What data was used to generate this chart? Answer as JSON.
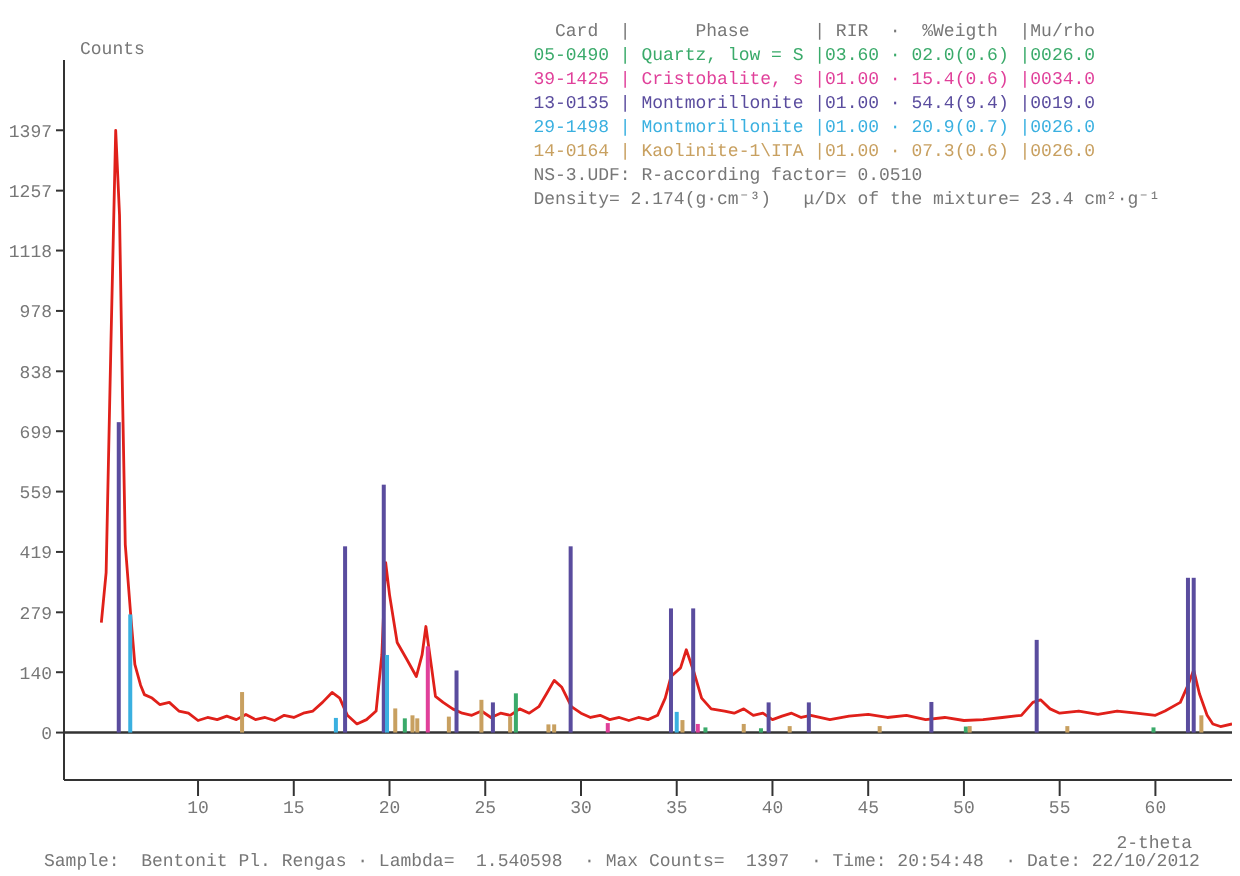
{
  "chart_data": {
    "type": "line",
    "ylabel": "Counts",
    "xlabel": "2-theta",
    "legend_title": "  Card  |      Phase      | RIR  ·  %Weigth  |Mu/rho",
    "legend": "top right",
    "annotations": [
      "NS-3.UDF: R-according factor= 0.0510",
      "Density= 2.174(g·cm⁻³)   μ/Dx of the mixture= 23.4 cm²·g⁻¹",
      "Sample:  Bentonit Pl. Rengas · Lambda=  1.540598  · Max Counts=  1397  · Time: 20:54:48  · Date: 22/10/2012"
    ],
    "xlim": [
      3,
      64
    ],
    "xticks": [
      10,
      15,
      20,
      25,
      30,
      35,
      40,
      45,
      50,
      55,
      60
    ],
    "ylim": [
      -110,
      1560
    ],
    "yticks": [
      0,
      140,
      279,
      419,
      559,
      699,
      838,
      978,
      1118,
      1257,
      1397
    ],
    "ref_lines": [
      {
        "axis": "y",
        "value": 0,
        "color": "#333333"
      }
    ],
    "series": [
      {
        "color": "#e0201a",
        "x": [
          4.95,
          5.2,
          5.45,
          5.7,
          5.9,
          6.06,
          6.2,
          6.5,
          6.7,
          7.0,
          7.2,
          7.6,
          8.0,
          8.5,
          9.0,
          9.5,
          10.0,
          10.5,
          11.0,
          11.5,
          12.0,
          12.5,
          13.0,
          13.5,
          14.0,
          14.5,
          15.0,
          15.5,
          16.0,
          16.5,
          17.0,
          17.4,
          17.8,
          18.3,
          18.8,
          19.3,
          19.6,
          19.8,
          20.0,
          20.4,
          20.9,
          21.4,
          21.7,
          21.9,
          22.2,
          22.4,
          22.8,
          23.3,
          23.8,
          24.3,
          24.8,
          25.3,
          25.8,
          26.3,
          26.8,
          27.3,
          27.8,
          28.2,
          28.6,
          29.0,
          29.5,
          30.0,
          30.5,
          31.0,
          31.5,
          32.0,
          32.5,
          33.0,
          33.5,
          34.0,
          34.4,
          34.7,
          35.2,
          35.5,
          35.9,
          36.3,
          36.8,
          37.5,
          38.0,
          38.5,
          39.0,
          39.5,
          40.0,
          40.5,
          41.0,
          41.5,
          42.0,
          43.0,
          44.0,
          45.0,
          46.0,
          47.0,
          48.0,
          49.0,
          50.0,
          51.0,
          52.0,
          53.0,
          53.6,
          54.0,
          54.5,
          55.0,
          56.0,
          57.0,
          58.0,
          59.0,
          60.0,
          60.5,
          61.3,
          61.7,
          62.0,
          62.3,
          62.7,
          63.0,
          63.4,
          64.0
        ],
        "values": [
          255,
          371,
          900,
          1397,
          1200,
          775,
          436,
          264,
          158,
          110,
          88,
          80,
          65,
          70,
          50,
          45,
          28,
          35,
          30,
          38,
          30,
          42,
          30,
          35,
          28,
          40,
          35,
          45,
          50,
          70,
          93,
          80,
          40,
          20,
          30,
          50,
          180,
          394,
          320,
          209,
          170,
          130,
          180,
          246,
          150,
          84,
          70,
          55,
          45,
          40,
          50,
          35,
          45,
          40,
          55,
          45,
          60,
          90,
          121,
          105,
          60,
          45,
          35,
          40,
          30,
          35,
          28,
          35,
          30,
          40,
          80,
          130,
          150,
          192,
          140,
          80,
          55,
          50,
          45,
          55,
          40,
          45,
          30,
          38,
          45,
          35,
          40,
          30,
          38,
          42,
          35,
          40,
          30,
          35,
          28,
          30,
          35,
          40,
          70,
          76,
          55,
          45,
          50,
          42,
          50,
          45,
          40,
          50,
          70,
          110,
          145,
          90,
          40,
          20,
          14,
          20
        ]
      },
      {
        "type": "bar",
        "name": "05-0490 | Quartz, low = S |03.60 · 02.0(0.6) |0026.0",
        "color": "#3aaa6a",
        "x": [
          20.8,
          26.6,
          36.5,
          39.4,
          50.1,
          59.9
        ],
        "values": [
          33,
          91,
          12,
          10,
          14,
          12
        ]
      },
      {
        "type": "bar",
        "name": "39-1425 | Cristobalite, s |01.00 · 15.4(0.6) |0034.0",
        "color": "#e0409a",
        "x": [
          22.0,
          31.4,
          36.1
        ],
        "values": [
          200,
          22,
          20
        ]
      },
      {
        "type": "bar",
        "name": "13-0135 | Montmorillonite |01.00 · 54.4(9.4) |0019.0",
        "color": "#5a4c9e",
        "x": [
          5.86,
          17.68,
          19.7,
          23.5,
          25.4,
          29.46,
          34.7,
          35.86,
          39.8,
          41.9,
          48.3,
          53.8,
          61.7,
          62.0
        ],
        "values": [
          720,
          432,
          575,
          144,
          70,
          432,
          288,
          288,
          70,
          70,
          71,
          215,
          359,
          359
        ]
      },
      {
        "type": "bar",
        "name": "29-1498 | Montmorillonite |01.00 · 20.9(0.7) |0026.0",
        "color": "#3ab0e0",
        "x": [
          6.46,
          17.2,
          19.87,
          35.0
        ],
        "values": [
          274,
          34,
          180,
          48
        ]
      },
      {
        "type": "bar",
        "name": "14-0164 | Kaolinite-1\\ITA |01.00 · 07.3(0.6) |0026.0",
        "color": "#c8a060",
        "x": [
          12.3,
          20.3,
          21.2,
          21.45,
          23.1,
          24.8,
          26.3,
          28.3,
          28.6,
          35.3,
          38.5,
          40.9,
          45.6,
          50.3,
          55.4,
          62.4
        ],
        "values": [
          94,
          56,
          40,
          33,
          37,
          76,
          37,
          19,
          19,
          29,
          20,
          15,
          15,
          15,
          15,
          40
        ]
      }
    ]
  }
}
